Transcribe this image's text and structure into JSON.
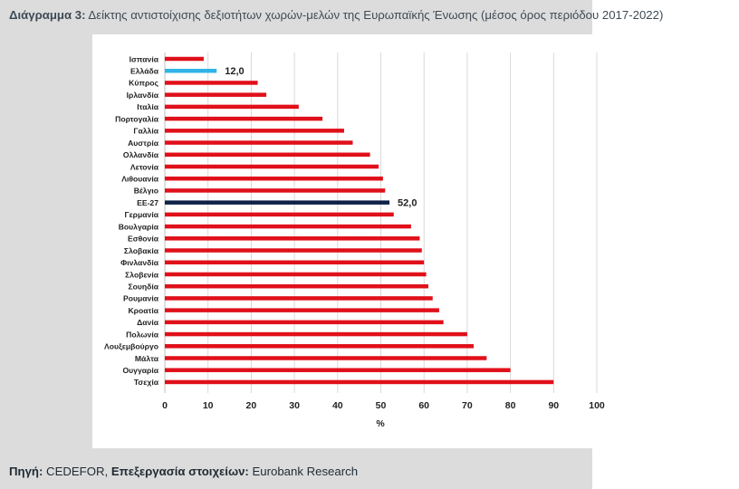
{
  "caption": {
    "label": "Διάγραμμα 3:",
    "text": " Δείκτης αντιστοίχισης δεξιοτήτων χωρών-μελών της Ευρωπαϊκής Ένωσης (μέσος όρος περιόδου 2017-2022)"
  },
  "footer": {
    "source_label": "Πηγή:",
    "source_value": " CEDEFOR, ",
    "processing_label": "Επεξεργασία στοιχείων:",
    "processing_value": " Eurobank Research"
  },
  "colors": {
    "default_bar": "#e0101a",
    "greece_bar": "#30b4e8",
    "eu_bar": "#0f2147",
    "grid": "#d9d9d9",
    "axis": "#bfbfbf",
    "text": "#222222"
  },
  "chart_data": {
    "type": "bar",
    "orientation": "horizontal",
    "title": "",
    "xlabel": "%",
    "ylabel": "",
    "xlim": [
      0,
      100
    ],
    "xticks": [
      "0",
      "10",
      "20",
      "30",
      "40",
      "50",
      "60",
      "70",
      "80",
      "90",
      "100"
    ],
    "grid": true,
    "categories": [
      "Ισπανία",
      "Ελλάδα",
      "Κύπρος",
      "Ιρλανδία",
      "Ιταλία",
      "Πορτογαλία",
      "Γαλλία",
      "Αυστρία",
      "Ολλανδία",
      "Λετονία",
      "Λιθουανία",
      "Βέλγιο",
      "ΕΕ-27",
      "Γερμανία",
      "Βουλγαρία",
      "Εσθονία",
      "Σλοβακία",
      "Φινλανδία",
      "Σλοβενία",
      "Σουηδία",
      "Ρουμανία",
      "Κροατία",
      "Δανία",
      "Πολωνία",
      "Λουξεμβούργο",
      "Μάλτα",
      "Ουγγαρία",
      "Τσεχία"
    ],
    "values": [
      9,
      12,
      21.5,
      23.5,
      31,
      36.5,
      41.5,
      43.5,
      47.5,
      49.5,
      50.5,
      51,
      52,
      53,
      57,
      59,
      59.5,
      60,
      60.5,
      61,
      62,
      63.5,
      64.5,
      70,
      71.5,
      74.5,
      80,
      90
    ],
    "highlights": {
      "Ελλάδα": "greece",
      "ΕΕ-27": "eu"
    },
    "data_labels": {
      "Ελλάδα": "12,0",
      "ΕΕ-27": "52,0"
    }
  }
}
